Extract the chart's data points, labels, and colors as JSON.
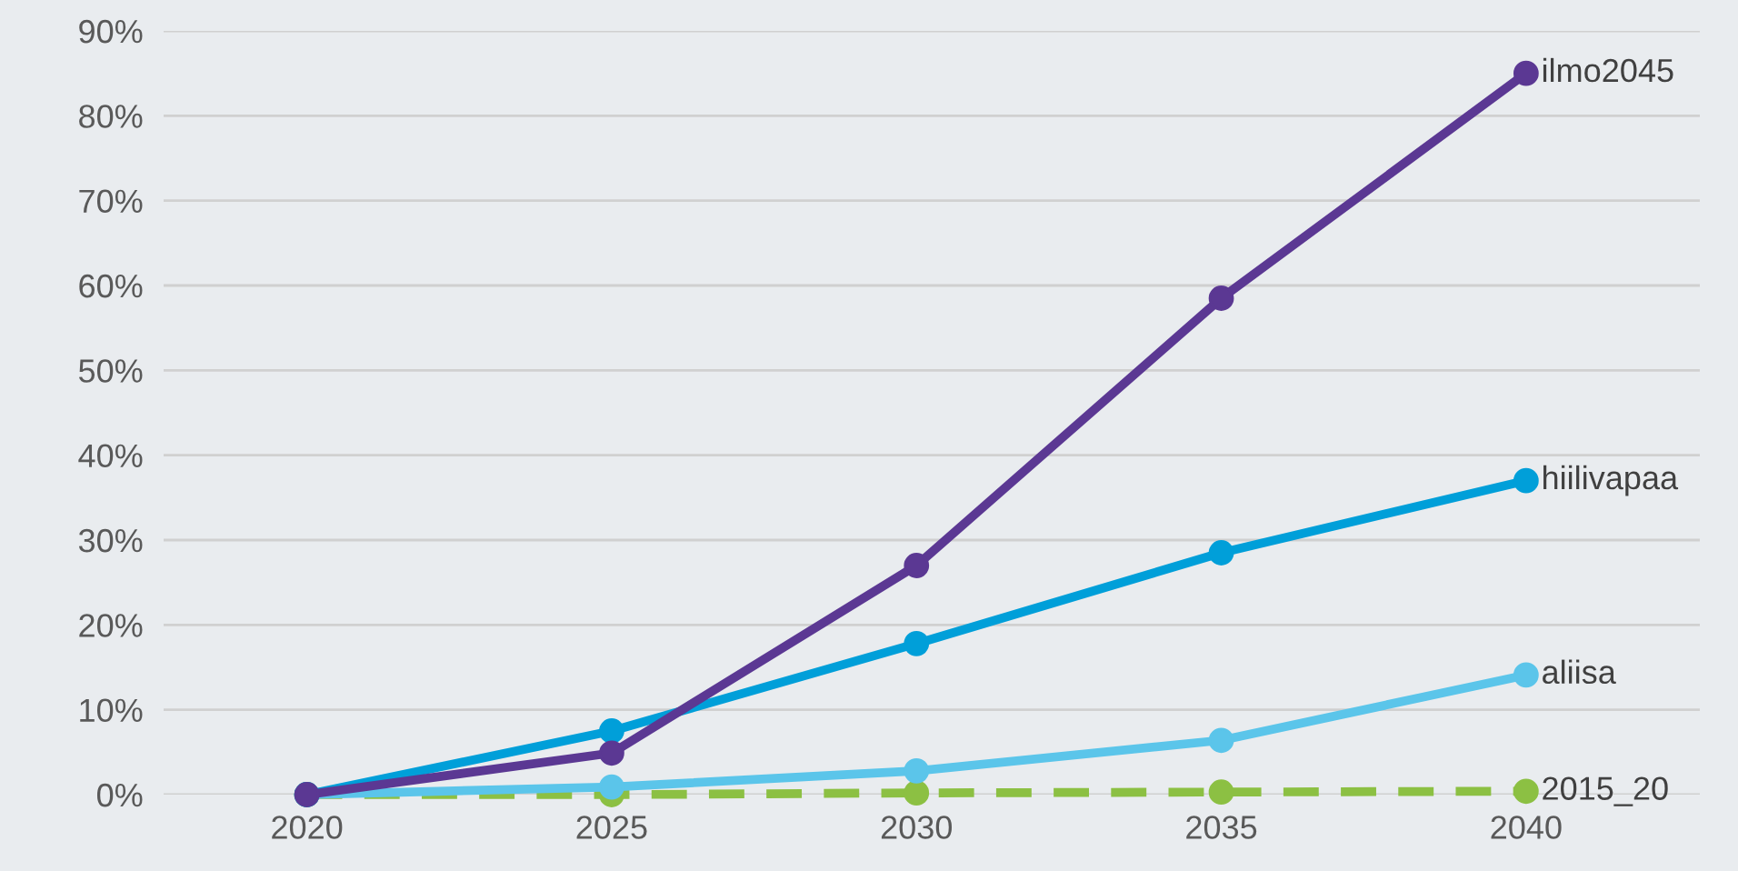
{
  "chart_data": {
    "type": "line",
    "categories": [
      "2020",
      "2025",
      "2030",
      "2035",
      "2040"
    ],
    "series": [
      {
        "name": "ilmo2045",
        "color": "#5b3893",
        "values": [
          0,
          4.9,
          27,
          58.5,
          85
        ]
      },
      {
        "name": "hiilivapaa",
        "color": "#009fd9",
        "values": [
          0,
          7.5,
          17.8,
          28.5,
          37
        ]
      },
      {
        "name": "aliisa",
        "color": "#5bc5ea",
        "values": [
          0,
          0.9,
          2.8,
          6.4,
          14.1
        ]
      },
      {
        "name": "2015_20",
        "color": "#8cc043",
        "values": [
          0,
          0,
          0.2,
          0.3,
          0.4
        ],
        "line_style": "dashed"
      }
    ],
    "ylim": [
      0,
      90
    ],
    "yticks": [
      {
        "value": 0,
        "label": "0%"
      },
      {
        "value": 10,
        "label": "10%"
      },
      {
        "value": 20,
        "label": "20%"
      },
      {
        "value": 30,
        "label": "30%"
      },
      {
        "value": 40,
        "label": "40%"
      },
      {
        "value": 50,
        "label": "50%"
      },
      {
        "value": 60,
        "label": "60%"
      },
      {
        "value": 70,
        "label": "70%"
      },
      {
        "value": 80,
        "label": "80%"
      },
      {
        "value": 90,
        "label": "90%"
      }
    ],
    "grid": "y",
    "marker": "circle",
    "line_style": "solid",
    "legend": false
  }
}
